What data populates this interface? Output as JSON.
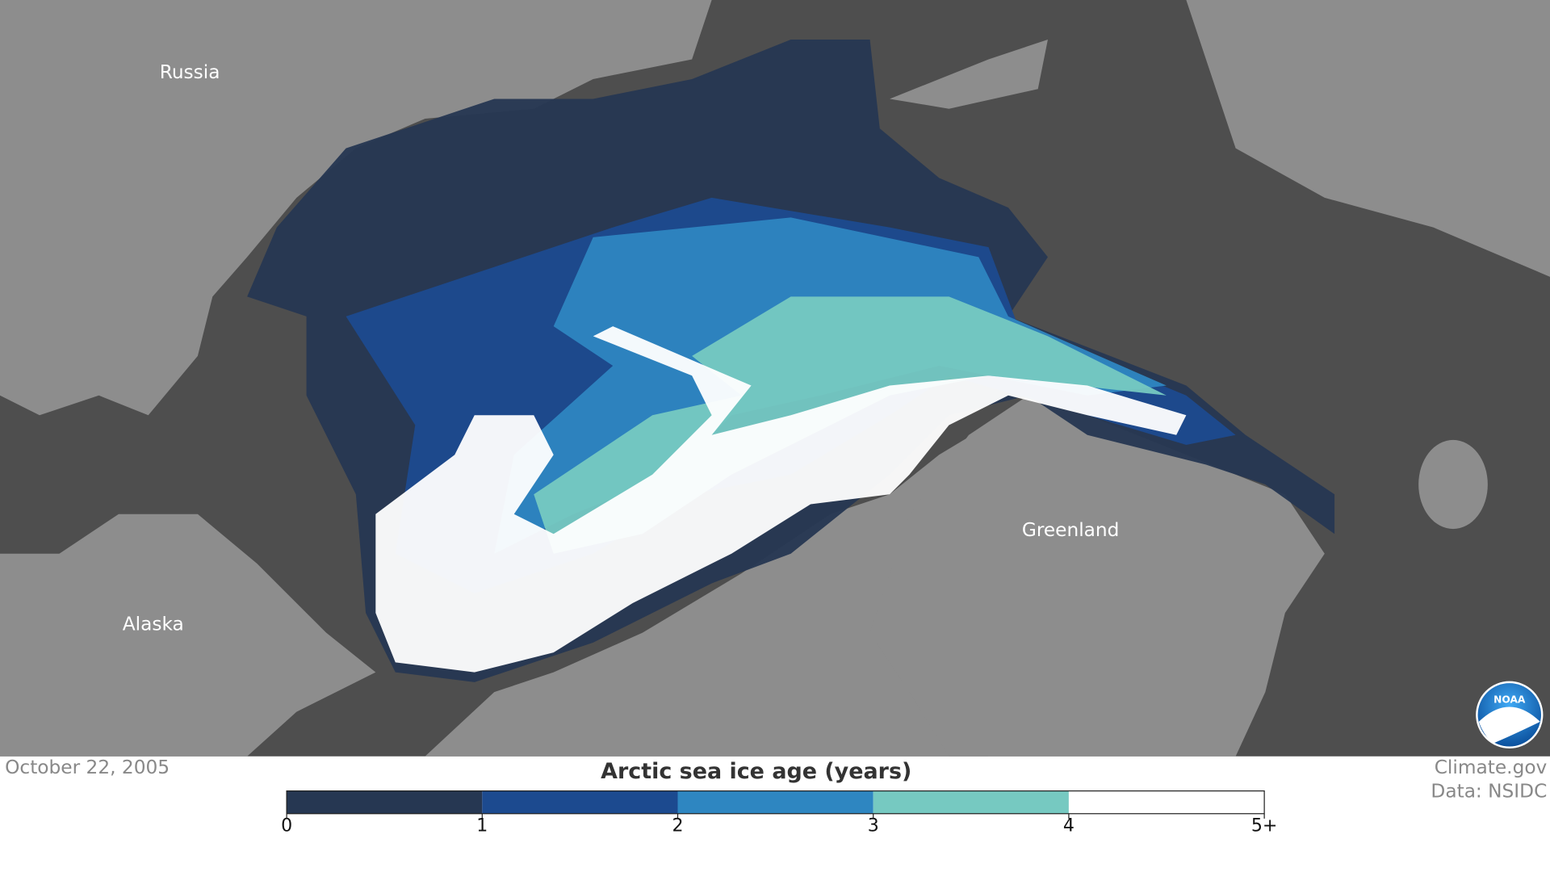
{
  "map": {
    "labels": [
      "Russia",
      "Alaska",
      "Greenland"
    ]
  },
  "date": "October 22, 2005",
  "legend": {
    "title": "Arctic sea ice age (years)",
    "ticks": [
      0,
      1,
      2,
      3,
      4,
      {
        "value": 5,
        "label": "5+"
      }
    ],
    "colors": [
      "#263752",
      "#1c4a8f",
      "#2e86c1",
      "#76c9c1",
      "#ffffff"
    ]
  },
  "credits": [
    "Climate.gov",
    "Data: NSIDC"
  ],
  "logo": "NOAA"
}
